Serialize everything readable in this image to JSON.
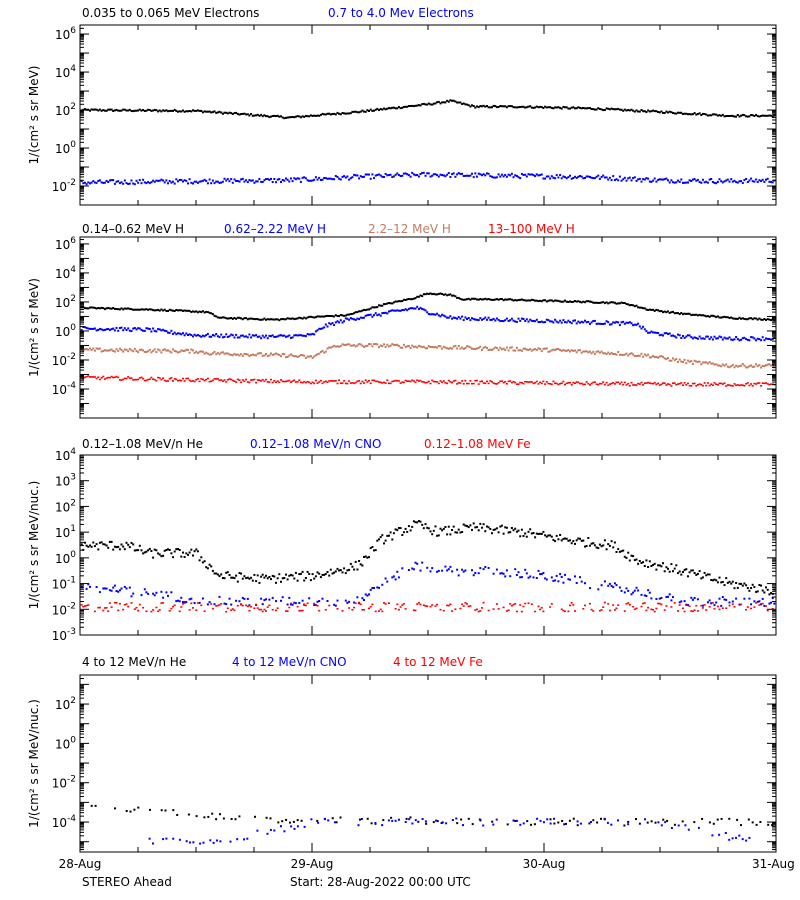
{
  "footer": {
    "spacecraft": "STEREO Ahead",
    "start": "Start: 28-Aug-2022 00:00 UTC"
  },
  "x_ticks": [
    "28-Aug",
    "29-Aug",
    "30-Aug",
    "31-Aug"
  ],
  "colors": {
    "black": "#000000",
    "blue": "#0000ff",
    "tan": "#c47c60",
    "red": "#ff0000"
  },
  "chart_data": [
    {
      "type": "scatter",
      "ylabel": "1/(cm² s sr MeV)",
      "ylog": true,
      "ylim": [
        0.001,
        3000000
      ],
      "y_ticks": [
        {
          "v": 0.01,
          "b": "10",
          "e": "-2"
        },
        {
          "v": 1,
          "b": "10",
          "e": "0"
        },
        {
          "v": 100,
          "b": "10",
          "e": "2"
        },
        {
          "v": 10000,
          "b": "10",
          "e": "4"
        },
        {
          "v": 1000000,
          "b": "10",
          "e": "6"
        }
      ],
      "xlim": [
        0,
        3
      ],
      "series": [
        {
          "name": "0.035 to 0.065 MeV Electrons",
          "color": "#000000",
          "x": [
            0,
            0.5,
            0.9,
            1.2,
            1.5,
            1.6,
            1.7,
            1.9,
            2.2,
            2.5,
            2.8,
            3.0
          ],
          "y": [
            100,
            90,
            40,
            80,
            200,
            300,
            150,
            150,
            120,
            80,
            50,
            50
          ]
        },
        {
          "name": "0.7 to 4.0 Mev Electrons",
          "color": "#0000ff",
          "x": [
            0,
            0.5,
            0.9,
            1.2,
            1.5,
            1.8,
            2.2,
            2.5,
            2.8,
            3.0
          ],
          "y": [
            0.015,
            0.018,
            0.02,
            0.03,
            0.04,
            0.035,
            0.03,
            0.02,
            0.018,
            0.02
          ]
        }
      ]
    },
    {
      "type": "scatter",
      "ylabel": "1/(cm² s sr MeV)",
      "ylog": true,
      "ylim": [
        1e-06,
        3000000
      ],
      "y_ticks": [
        {
          "v": 0.0001,
          "b": "10",
          "e": "-4"
        },
        {
          "v": 0.01,
          "b": "10",
          "e": "-2"
        },
        {
          "v": 1,
          "b": "10",
          "e": "0"
        },
        {
          "v": 100,
          "b": "10",
          "e": "2"
        },
        {
          "v": 10000,
          "b": "10",
          "e": "4"
        },
        {
          "v": 1000000,
          "b": "10",
          "e": "6"
        }
      ],
      "xlim": [
        0,
        3
      ],
      "series": [
        {
          "name": "0.14–0.62 MeV H",
          "color": "#000000",
          "x": [
            0,
            0.3,
            0.55,
            0.6,
            0.85,
            1.05,
            1.15,
            1.3,
            1.45,
            1.5,
            1.6,
            1.65,
            1.8,
            2.0,
            2.2,
            2.35,
            2.45,
            2.6,
            2.8,
            3.0
          ],
          "y": [
            40,
            30,
            20,
            8,
            6,
            10,
            12,
            60,
            200,
            400,
            300,
            150,
            150,
            120,
            100,
            80,
            30,
            15,
            8,
            6
          ]
        },
        {
          "name": "0.62–2.22 MeV H",
          "color": "#0000ff",
          "x": [
            0,
            0.3,
            0.5,
            0.85,
            1.0,
            1.05,
            1.15,
            1.3,
            1.45,
            1.5,
            1.6,
            1.8,
            2.0,
            2.2,
            2.4,
            2.45,
            2.6,
            2.8,
            3.0
          ],
          "y": [
            1.5,
            1.2,
            0.5,
            0.4,
            0.5,
            2,
            6,
            15,
            40,
            20,
            8,
            6,
            5,
            4,
            3,
            0.8,
            0.4,
            0.3,
            0.3
          ]
        },
        {
          "name": "2.2–12 MeV H",
          "color": "#c47c60",
          "x": [
            0,
            0.5,
            0.55,
            0.9,
            1.0,
            1.1,
            1.3,
            1.5,
            1.8,
            2.0,
            2.3,
            2.45,
            2.6,
            2.8,
            3.0
          ],
          "y": [
            0.05,
            0.04,
            0.03,
            0.02,
            0.015,
            0.1,
            0.1,
            0.08,
            0.06,
            0.05,
            0.03,
            0.02,
            0.008,
            0.004,
            0.004
          ]
        },
        {
          "name": "13–100 MeV H",
          "color": "#ff0000",
          "x": [
            0,
            0.5,
            1.0,
            1.5,
            2.0,
            2.5,
            3.0
          ],
          "y": [
            0.0006,
            0.0004,
            0.0003,
            0.0003,
            0.00025,
            0.0002,
            0.0002
          ]
        }
      ]
    },
    {
      "type": "scatter",
      "ylabel": "1/(cm² s sr MeV/nuc.)",
      "ylog": true,
      "ylim": [
        0.001,
        10000
      ],
      "y_ticks": [
        {
          "v": 0.001,
          "b": "10",
          "e": "-3"
        },
        {
          "v": 0.01,
          "b": "10",
          "e": "-2"
        },
        {
          "v": 0.1,
          "b": "10",
          "e": "-1"
        },
        {
          "v": 1,
          "b": "10",
          "e": "0"
        },
        {
          "v": 10,
          "b": "10",
          "e": "1"
        },
        {
          "v": 100,
          "b": "10",
          "e": "2"
        },
        {
          "v": 1000,
          "b": "10",
          "e": "3"
        },
        {
          "v": 10000,
          "b": "10",
          "e": "4"
        }
      ],
      "xlim": [
        0,
        3
      ],
      "series": [
        {
          "name": "0.12–1.08 MeV/n He",
          "color": "#000000",
          "x": [
            0,
            0.2,
            0.3,
            0.5,
            0.6,
            0.8,
            1.0,
            1.1,
            1.2,
            1.3,
            1.45,
            1.55,
            1.7,
            1.9,
            2.1,
            2.3,
            2.4,
            2.6,
            2.8,
            3.0
          ],
          "y": [
            3,
            3,
            1.5,
            1.5,
            0.2,
            0.15,
            0.2,
            0.3,
            0.5,
            5,
            20,
            10,
            15,
            10,
            5,
            3,
            0.8,
            0.3,
            0.1,
            0.05
          ]
        },
        {
          "name": "0.12–1.08 MeV/n CNO",
          "color": "#0000ff",
          "x": [
            0,
            0.3,
            0.6,
            1.0,
            1.2,
            1.3,
            1.45,
            1.6,
            1.8,
            2.0,
            2.2,
            2.4,
            2.6,
            2.8,
            3.0
          ],
          "y": [
            0.08,
            0.04,
            0.02,
            0.02,
            0.02,
            0.1,
            0.5,
            0.3,
            0.3,
            0.2,
            0.1,
            0.05,
            0.02,
            0.02,
            0.02
          ]
        },
        {
          "name": "0.12–1.08 MeV Fe",
          "color": "#ff0000",
          "x": [
            0,
            1.5,
            3.0
          ],
          "y": [
            0.012,
            0.012,
            0.012
          ]
        }
      ]
    },
    {
      "type": "scatter",
      "ylabel": "1/(cm² s sr MeV/nuc.)",
      "ylog": true,
      "ylim": [
        3e-06,
        3000
      ],
      "y_ticks": [
        {
          "v": 0.0001,
          "b": "10",
          "e": "-4"
        },
        {
          "v": 0.01,
          "b": "10",
          "e": "-2"
        },
        {
          "v": 1,
          "b": "10",
          "e": "0"
        },
        {
          "v": 100,
          "b": "10",
          "e": "2"
        }
      ],
      "xlim": [
        0,
        3
      ],
      "series": [
        {
          "name": "4 to 12 MeV/n He",
          "color": "#000000",
          "x": [
            0,
            0.2,
            0.4,
            0.6,
            0.8,
            1.0,
            1.5,
            2.0,
            2.5,
            3.0
          ],
          "y": [
            0.0005,
            0.0005,
            0.0003,
            0.0002,
            0.00015,
            0.00012,
            0.00012,
            0.0001,
            0.0001,
            0.0001
          ]
        },
        {
          "name": "4 to 12 MeV/n CNO",
          "color": "#0000ff",
          "x": [
            0.3,
            0.6,
            1.0,
            1.5,
            2.0,
            2.5,
            2.9
          ],
          "y": [
            1e-05,
            1e-05,
            0.0001,
            0.0001,
            0.0001,
            0.0001,
            1e-05
          ]
        },
        {
          "name": "4 to 12 MeV Fe",
          "color": "#ff0000",
          "x": [],
          "y": []
        }
      ]
    }
  ]
}
